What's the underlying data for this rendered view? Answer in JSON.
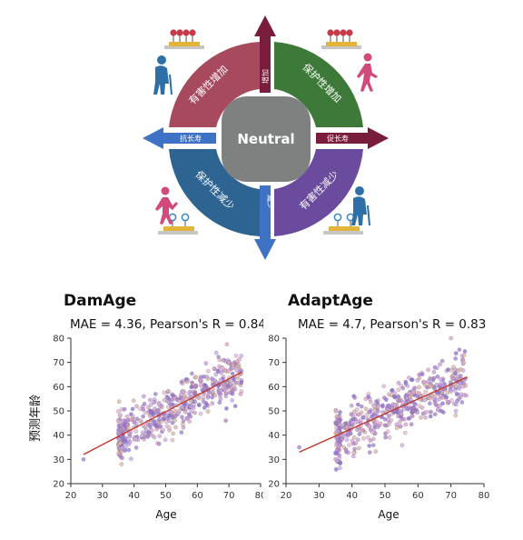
{
  "diagram": {
    "center_label": "Neutral",
    "quadrants": [
      {
        "label": "有害性增加",
        "color": "#a84a5e"
      },
      {
        "label": "保护性增加",
        "color": "#3d7a3a"
      },
      {
        "label": "保护性减少",
        "color": "#2e6491"
      },
      {
        "label": "有害性减少",
        "color": "#6a4b9e"
      }
    ],
    "arrows": {
      "up": "增加",
      "down": "减少",
      "left": "抗长寿",
      "right": "促长寿"
    },
    "colors": {
      "up_arrow": "#7a1d3d",
      "right_arrow": "#7a1d3d",
      "left_arrow": "#3e72c4",
      "down_arrow": "#3e72c4",
      "center": "#7f8080",
      "people": "#d24a7c",
      "elder": "#2f6fa8"
    }
  },
  "chart_data": [
    {
      "type": "scatter",
      "title": "DamAge",
      "subtitle": "MAE = 4.36, Pearson's R = 0.84",
      "xlabel": "Age",
      "ylabel": "预测年龄",
      "xlim": [
        20,
        80
      ],
      "ylim": [
        20,
        80
      ],
      "xticks": [
        20,
        30,
        40,
        50,
        60,
        70,
        80
      ],
      "yticks": [
        20,
        30,
        40,
        50,
        60,
        70,
        80
      ],
      "fit_line": {
        "x": [
          24,
          74
        ],
        "y": [
          32,
          66
        ],
        "color": "#c0392b"
      },
      "mae": 4.36,
      "pearson_r": 0.84,
      "cloud": {
        "n": 520,
        "x_range": [
          35,
          74
        ],
        "slope": 0.68,
        "intercept": 15.7,
        "noise_sd": 5.2,
        "seed": 11
      },
      "outlier_points": [
        [
          24,
          30
        ],
        [
          36,
          44
        ],
        [
          35,
          46
        ],
        [
          36,
          28
        ],
        [
          69,
          46
        ],
        [
          72,
          52
        ],
        [
          70,
          70
        ],
        [
          66,
          74
        ]
      ],
      "grid": false
    },
    {
      "type": "scatter",
      "title": "AdaptAge",
      "subtitle": "MAE = 4.7, Pearson's R = 0.83",
      "xlabel": "Age",
      "ylabel": "",
      "xlim": [
        20,
        80
      ],
      "ylim": [
        20,
        80
      ],
      "xticks": [
        20,
        30,
        40,
        50,
        60,
        70,
        80
      ],
      "yticks": [
        20,
        30,
        40,
        50,
        60,
        70,
        80
      ],
      "fit_line": {
        "x": [
          24,
          75
        ],
        "y": [
          33,
          64
        ],
        "color": "#c0392b"
      },
      "mae": 4.7,
      "pearson_r": 0.83,
      "cloud": {
        "n": 520,
        "x_range": [
          35,
          75
        ],
        "slope": 0.61,
        "intercept": 18.4,
        "noise_sd": 5.4,
        "seed": 29
      },
      "outlier_points": [
        [
          24,
          35
        ],
        [
          35,
          30
        ],
        [
          70,
          80
        ],
        [
          74,
          73
        ],
        [
          36,
          46
        ],
        [
          67,
          50
        ]
      ],
      "grid": false
    }
  ]
}
